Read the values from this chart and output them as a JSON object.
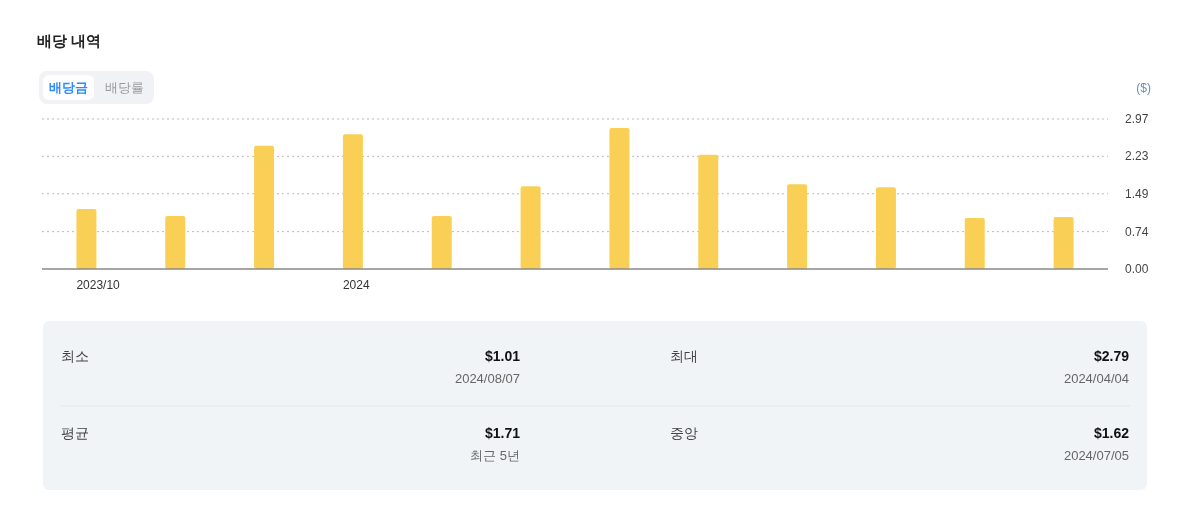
{
  "chart_data": {
    "type": "bar",
    "title": "배당 내역",
    "ylabel": "($)",
    "categories": [
      "2023/10",
      null,
      null,
      "2024",
      null,
      null,
      null,
      null,
      null,
      null,
      null,
      null
    ],
    "values": [
      1.19,
      1.05,
      2.44,
      2.67,
      1.05,
      1.64,
      2.79,
      2.26,
      1.68,
      1.62,
      1.01,
      1.03
    ],
    "color": "#f9cf55",
    "ylim": [
      0,
      2.97
    ],
    "yticks": [
      {
        "value": 0,
        "label": "0.00"
      },
      0.74,
      1.49,
      2.23,
      2.97
    ],
    "grid": "y",
    "annotations": [
      "배당금",
      "배당률",
      "최소",
      "$1.01",
      "2024/08/07",
      "최대",
      "$2.79",
      "2024/04/04",
      "평균",
      "$1.71",
      "최근 5년",
      "중앙",
      "$1.62",
      "2024/07/05"
    ]
  }
}
